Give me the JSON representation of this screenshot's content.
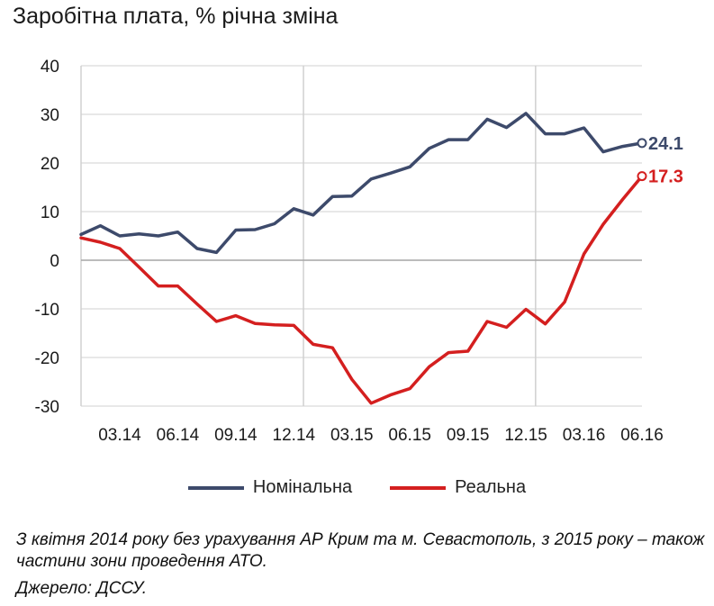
{
  "title": "Заробітна плата, % річна зміна",
  "legend": [
    {
      "label": "Номінальна",
      "color": "#3d4a6b"
    },
    {
      "label": "Реальна",
      "color": "#d41f1f"
    }
  ],
  "footnote": "З квітня 2014 року без урахування АР Крим та м. Севастополь, з 2015 року – також частини зони проведення АТО.",
  "source": "Джерело: ДССУ.",
  "chart_data": {
    "type": "line",
    "title": "Заробітна плата, % річна зміна",
    "xlabel": "",
    "ylabel": "",
    "ylim": [
      -30,
      40
    ],
    "yticks": [
      40,
      30,
      20,
      10,
      0,
      -10,
      -20,
      -30
    ],
    "x": [
      "01.14",
      "02.14",
      "03.14",
      "04.14",
      "05.14",
      "06.14",
      "07.14",
      "08.14",
      "09.14",
      "10.14",
      "11.14",
      "12.14",
      "01.15",
      "02.15",
      "03.15",
      "04.15",
      "05.15",
      "06.15",
      "07.15",
      "08.15",
      "09.15",
      "10.15",
      "11.15",
      "12.15",
      "01.16",
      "02.16",
      "03.16",
      "04.16",
      "05.16",
      "06.16"
    ],
    "x_tick_labels": [
      "03.14",
      "06.14",
      "09.14",
      "12.14",
      "03.15",
      "06.15",
      "09.15",
      "12.15",
      "03.16",
      "06.16"
    ],
    "grid": "vertical",
    "legend_position": "bottom",
    "series": [
      {
        "name": "Номінальна",
        "color": "#3d4a6b",
        "values": [
          5.3,
          7.1,
          5.0,
          5.4,
          5.0,
          5.8,
          2.4,
          1.6,
          6.2,
          6.3,
          7.5,
          10.6,
          9.3,
          13.1,
          13.2,
          16.7,
          17.9,
          19.2,
          23.0,
          24.8,
          24.8,
          29.0,
          27.3,
          30.2,
          26.0,
          26.0,
          27.2,
          22.3,
          23.4,
          24.1
        ],
        "end_label": "24.1"
      },
      {
        "name": "Реальна",
        "color": "#d41f1f",
        "values": [
          4.6,
          3.7,
          2.4,
          -1.4,
          -5.3,
          -5.3,
          -9.0,
          -12.6,
          -11.4,
          -13.0,
          -13.3,
          -13.4,
          -17.3,
          -18.0,
          -24.5,
          -29.4,
          -27.7,
          -26.4,
          -21.9,
          -19.0,
          -18.7,
          -12.6,
          -13.8,
          -10.1,
          -13.1,
          -8.6,
          1.3,
          7.4,
          12.5,
          17.3
        ],
        "end_label": "17.3"
      }
    ]
  }
}
